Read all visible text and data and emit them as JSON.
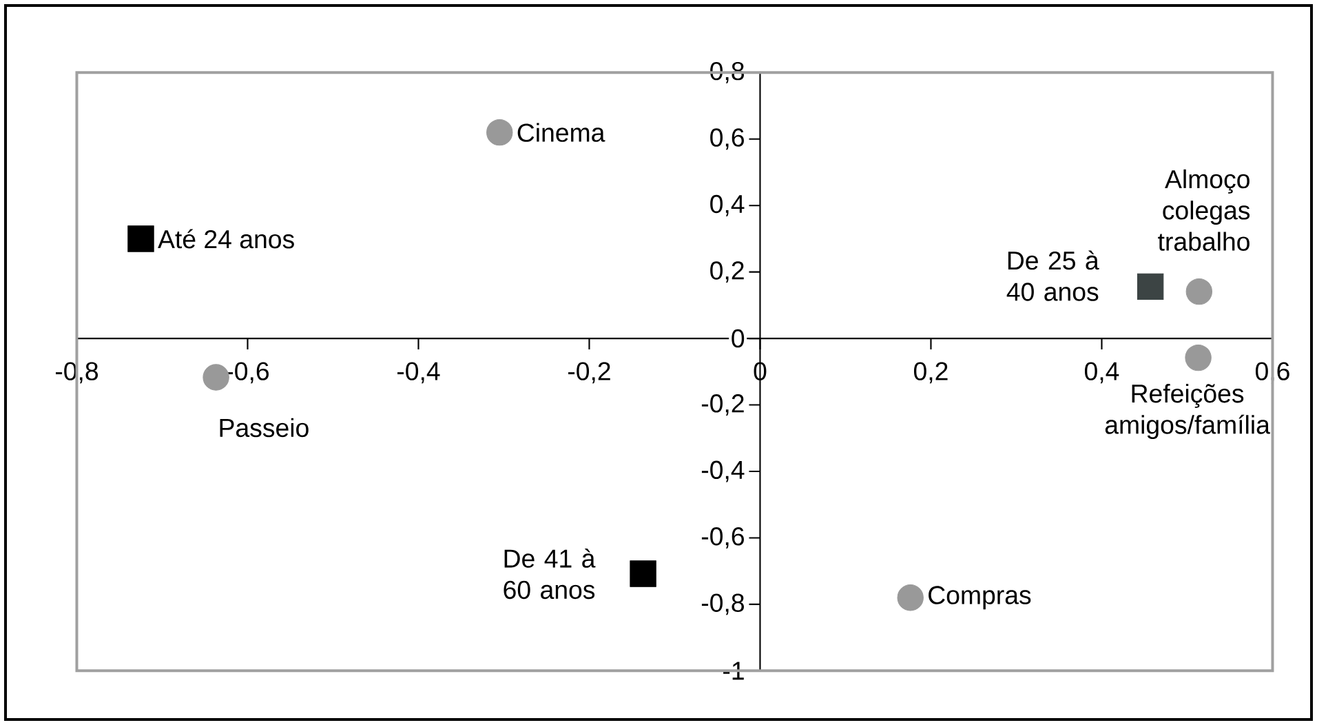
{
  "chart_data": {
    "type": "scatter",
    "xlim": [
      -0.8,
      0.6
    ],
    "ylim": [
      -1,
      0.8
    ],
    "xticks": [
      {
        "value": -0.8,
        "label": "-0,8"
      },
      {
        "value": -0.6,
        "label": "-0,6"
      },
      {
        "value": -0.4,
        "label": "-0,4"
      },
      {
        "value": -0.2,
        "label": "-0,2"
      },
      0,
      {
        "value": 0.2,
        "label": "0,2"
      },
      {
        "value": 0.4,
        "label": "0,4"
      },
      {
        "value": 0.6,
        "label": "0,6"
      }
    ],
    "yticks": [
      -1,
      {
        "value": -0.8,
        "label": "-0,8"
      },
      {
        "value": -0.6,
        "label": "-0,6"
      },
      {
        "value": -0.4,
        "label": "-0,4"
      },
      {
        "value": -0.2,
        "label": "-0,2"
      },
      0,
      {
        "value": 0.2,
        "label": "0,2"
      },
      {
        "value": 0.4,
        "label": "0,4"
      },
      {
        "value": 0.6,
        "label": "0,6"
      },
      {
        "value": 0.8,
        "label": "0,8"
      }
    ],
    "grid": false,
    "series": [
      {
        "marker": "square",
        "colors": [
          "#000000",
          "#3c4444",
          "#000000"
        ],
        "x": [
          -0.725,
          0.457,
          -0.137
        ],
        "values": [
          0.3,
          0.156,
          -0.708
        ]
      },
      {
        "marker": "circle",
        "color": "#999999",
        "x": [
          -0.305,
          -0.637,
          0.514,
          0.513,
          0.176
        ],
        "values": [
          0.62,
          -0.117,
          0.141,
          -0.058,
          -0.78
        ]
      }
    ],
    "annotations": [
      {
        "text": "Até 24 anos",
        "x": -0.725,
        "y": 0.3
      },
      {
        "text": "De 25 à 40 anos",
        "x": 0.457,
        "y": 0.156
      },
      {
        "text": "De 41 à 60 anos",
        "x": -0.137,
        "y": -0.708
      },
      {
        "text": "Cinema",
        "x": -0.305,
        "y": 0.62
      },
      {
        "text": "Passeio",
        "x": -0.637,
        "y": -0.117
      },
      {
        "text": "Almoço colegas trabalho",
        "x": 0.514,
        "y": 0.141
      },
      {
        "text": "Refeições amigos/família",
        "x": 0.513,
        "y": -0.058
      },
      {
        "text": "Compras",
        "x": 0.176,
        "y": -0.78
      }
    ]
  }
}
